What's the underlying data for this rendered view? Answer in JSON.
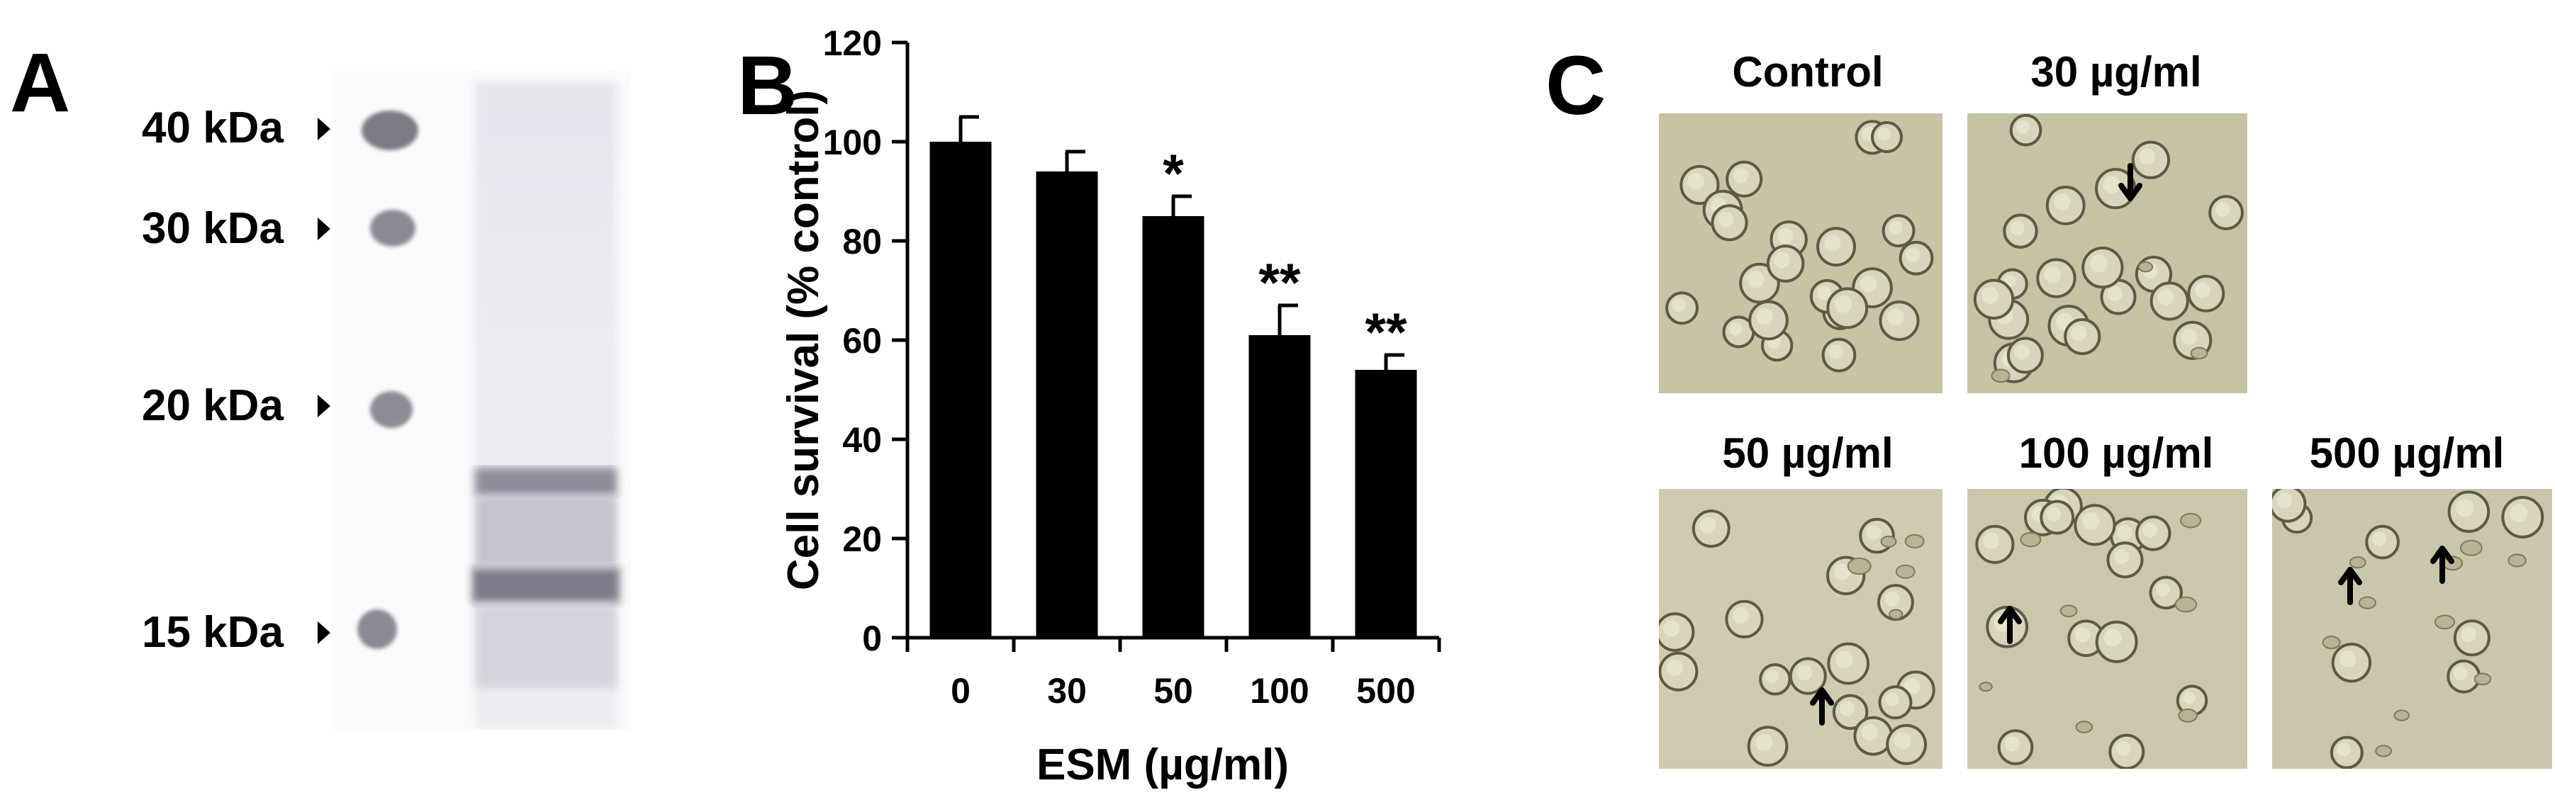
{
  "figure": {
    "panel_letters": [
      "A",
      "B",
      "C"
    ]
  },
  "panel_a": {
    "markers": [
      "40 kDa",
      "30 kDa",
      "20 kDa",
      "15 kDa"
    ]
  },
  "chart_data": {
    "type": "bar",
    "categories": [
      "0",
      "30",
      "50",
      "100",
      "500"
    ],
    "values": [
      100,
      94,
      85,
      61,
      54
    ],
    "errors": [
      5,
      4,
      4,
      6,
      3
    ],
    "significance": [
      "",
      "",
      "*",
      "**",
      "**"
    ],
    "xlabel": "ESM (µg/ml)",
    "ylabel": "Cell survival (% control)",
    "ylim": [
      0,
      120
    ],
    "yticks": [
      "0",
      "20",
      "40",
      "60",
      "80",
      "100",
      "120"
    ],
    "bar_color": "#000000"
  },
  "panel_c": {
    "images": [
      {
        "title": "Control",
        "arrows": 0
      },
      {
        "title": "30 µg/ml",
        "arrows": 1
      },
      {
        "title": "50 µg/ml",
        "arrows": 1
      },
      {
        "title": "100 µg/ml",
        "arrows": 1
      },
      {
        "title": "500 µg/ml",
        "arrows": 2
      }
    ]
  }
}
